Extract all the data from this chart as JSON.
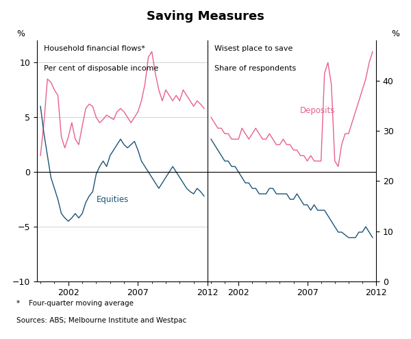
{
  "title": "Saving Measures",
  "left_panel_title1": "Household financial flows*",
  "left_panel_title2": "Per cent of disposable income",
  "right_panel_title1": "Wisest place to save",
  "right_panel_title2": "Share of respondents",
  "left_ylabel": "%",
  "right_ylabel": "%",
  "yticks_left": [
    -10,
    -5,
    0,
    5,
    10
  ],
  "yticks_right": [
    0,
    10,
    20,
    30,
    40
  ],
  "footnote1": "*    Four-quarter moving average",
  "footnote2": "Sources: ABS; Melbourne Institute and Westpac",
  "pink_color": "#E8608A",
  "blue_color": "#1A5276",
  "label_equities": "Equities",
  "label_deposits": "Deposits",
  "left_pink_x": [
    2000.0,
    2000.25,
    2000.5,
    2000.75,
    2001.0,
    2001.25,
    2001.5,
    2001.75,
    2002.0,
    2002.25,
    2002.5,
    2002.75,
    2003.0,
    2003.25,
    2003.5,
    2003.75,
    2004.0,
    2004.25,
    2004.5,
    2004.75,
    2005.0,
    2005.25,
    2005.5,
    2005.75,
    2006.0,
    2006.25,
    2006.5,
    2006.75,
    2007.0,
    2007.25,
    2007.5,
    2007.75,
    2008.0,
    2008.25,
    2008.5,
    2008.75,
    2009.0,
    2009.25,
    2009.5,
    2009.75,
    2010.0,
    2010.25,
    2010.5,
    2010.75,
    2011.0,
    2011.25,
    2011.5,
    2011.75
  ],
  "left_pink_y": [
    1.5,
    4.5,
    8.5,
    8.2,
    7.5,
    7.0,
    3.2,
    2.2,
    3.2,
    4.5,
    3.0,
    2.5,
    4.2,
    5.8,
    6.2,
    6.0,
    5.0,
    4.5,
    4.8,
    5.2,
    5.0,
    4.8,
    5.5,
    5.8,
    5.5,
    5.0,
    4.5,
    5.0,
    5.5,
    6.5,
    8.0,
    10.5,
    11.0,
    9.0,
    7.5,
    6.5,
    7.5,
    7.0,
    6.5,
    7.0,
    6.5,
    7.5,
    7.0,
    6.5,
    6.0,
    6.5,
    6.2,
    5.8
  ],
  "left_blue_x": [
    2000.0,
    2000.25,
    2000.5,
    2000.75,
    2001.0,
    2001.25,
    2001.5,
    2001.75,
    2002.0,
    2002.25,
    2002.5,
    2002.75,
    2003.0,
    2003.25,
    2003.5,
    2003.75,
    2004.0,
    2004.25,
    2004.5,
    2004.75,
    2005.0,
    2005.25,
    2005.5,
    2005.75,
    2006.0,
    2006.25,
    2006.5,
    2006.75,
    2007.0,
    2007.25,
    2007.5,
    2007.75,
    2008.0,
    2008.25,
    2008.5,
    2008.75,
    2009.0,
    2009.25,
    2009.5,
    2009.75,
    2010.0,
    2010.25,
    2010.5,
    2010.75,
    2011.0,
    2011.25,
    2011.5,
    2011.75
  ],
  "left_blue_y": [
    6.0,
    3.5,
    1.5,
    -0.5,
    -1.5,
    -2.5,
    -3.8,
    -4.2,
    -4.5,
    -4.2,
    -3.8,
    -4.2,
    -3.8,
    -2.8,
    -2.2,
    -1.8,
    -0.2,
    0.5,
    1.0,
    0.5,
    1.5,
    2.0,
    2.5,
    3.0,
    2.5,
    2.2,
    2.5,
    2.8,
    2.0,
    1.0,
    0.5,
    0.0,
    -0.5,
    -1.0,
    -1.5,
    -1.0,
    -0.5,
    0.0,
    0.5,
    0.0,
    -0.5,
    -1.0,
    -1.5,
    -1.8,
    -2.0,
    -1.5,
    -1.8,
    -2.2
  ],
  "right_pink_x": [
    2000.0,
    2000.25,
    2000.5,
    2000.75,
    2001.0,
    2001.25,
    2001.5,
    2001.75,
    2002.0,
    2002.25,
    2002.5,
    2002.75,
    2003.0,
    2003.25,
    2003.5,
    2003.75,
    2004.0,
    2004.25,
    2004.5,
    2004.75,
    2005.0,
    2005.25,
    2005.5,
    2005.75,
    2006.0,
    2006.25,
    2006.5,
    2006.75,
    2007.0,
    2007.25,
    2007.5,
    2007.75,
    2008.0,
    2008.25,
    2008.5,
    2008.75,
    2009.0,
    2009.25,
    2009.5,
    2009.75,
    2010.0,
    2010.25,
    2010.5,
    2010.75,
    2011.0,
    2011.25,
    2011.5,
    2011.75
  ],
  "right_pink_y": [
    30,
    29,
    28,
    28,
    27,
    27,
    26,
    26,
    26,
    28,
    27,
    26,
    27,
    28,
    27,
    26,
    26,
    27,
    26,
    25,
    25,
    26,
    25,
    25,
    24,
    24,
    23,
    23,
    22,
    23,
    22,
    22,
    22,
    38,
    40,
    36,
    22,
    21,
    25,
    27,
    27,
    29,
    31,
    33,
    35,
    37,
    40,
    42
  ],
  "right_blue_x": [
    2000.0,
    2000.25,
    2000.5,
    2000.75,
    2001.0,
    2001.25,
    2001.5,
    2001.75,
    2002.0,
    2002.25,
    2002.5,
    2002.75,
    2003.0,
    2003.25,
    2003.5,
    2003.75,
    2004.0,
    2004.25,
    2004.5,
    2004.75,
    2005.0,
    2005.25,
    2005.5,
    2005.75,
    2006.0,
    2006.25,
    2006.5,
    2006.75,
    2007.0,
    2007.25,
    2007.5,
    2007.75,
    2008.0,
    2008.25,
    2008.5,
    2008.75,
    2009.0,
    2009.25,
    2009.5,
    2009.75,
    2010.0,
    2010.25,
    2010.5,
    2010.75,
    2011.0,
    2011.25,
    2011.5,
    2011.75
  ],
  "right_blue_y": [
    26,
    25,
    24,
    23,
    22,
    22,
    21,
    21,
    20,
    19,
    18,
    18,
    17,
    17,
    16,
    16,
    16,
    17,
    17,
    16,
    16,
    16,
    16,
    15,
    15,
    16,
    15,
    14,
    14,
    13,
    14,
    13,
    13,
    13,
    12,
    11,
    10,
    9,
    9,
    8.5,
    8,
    8,
    8,
    9,
    9,
    10,
    9,
    8
  ]
}
